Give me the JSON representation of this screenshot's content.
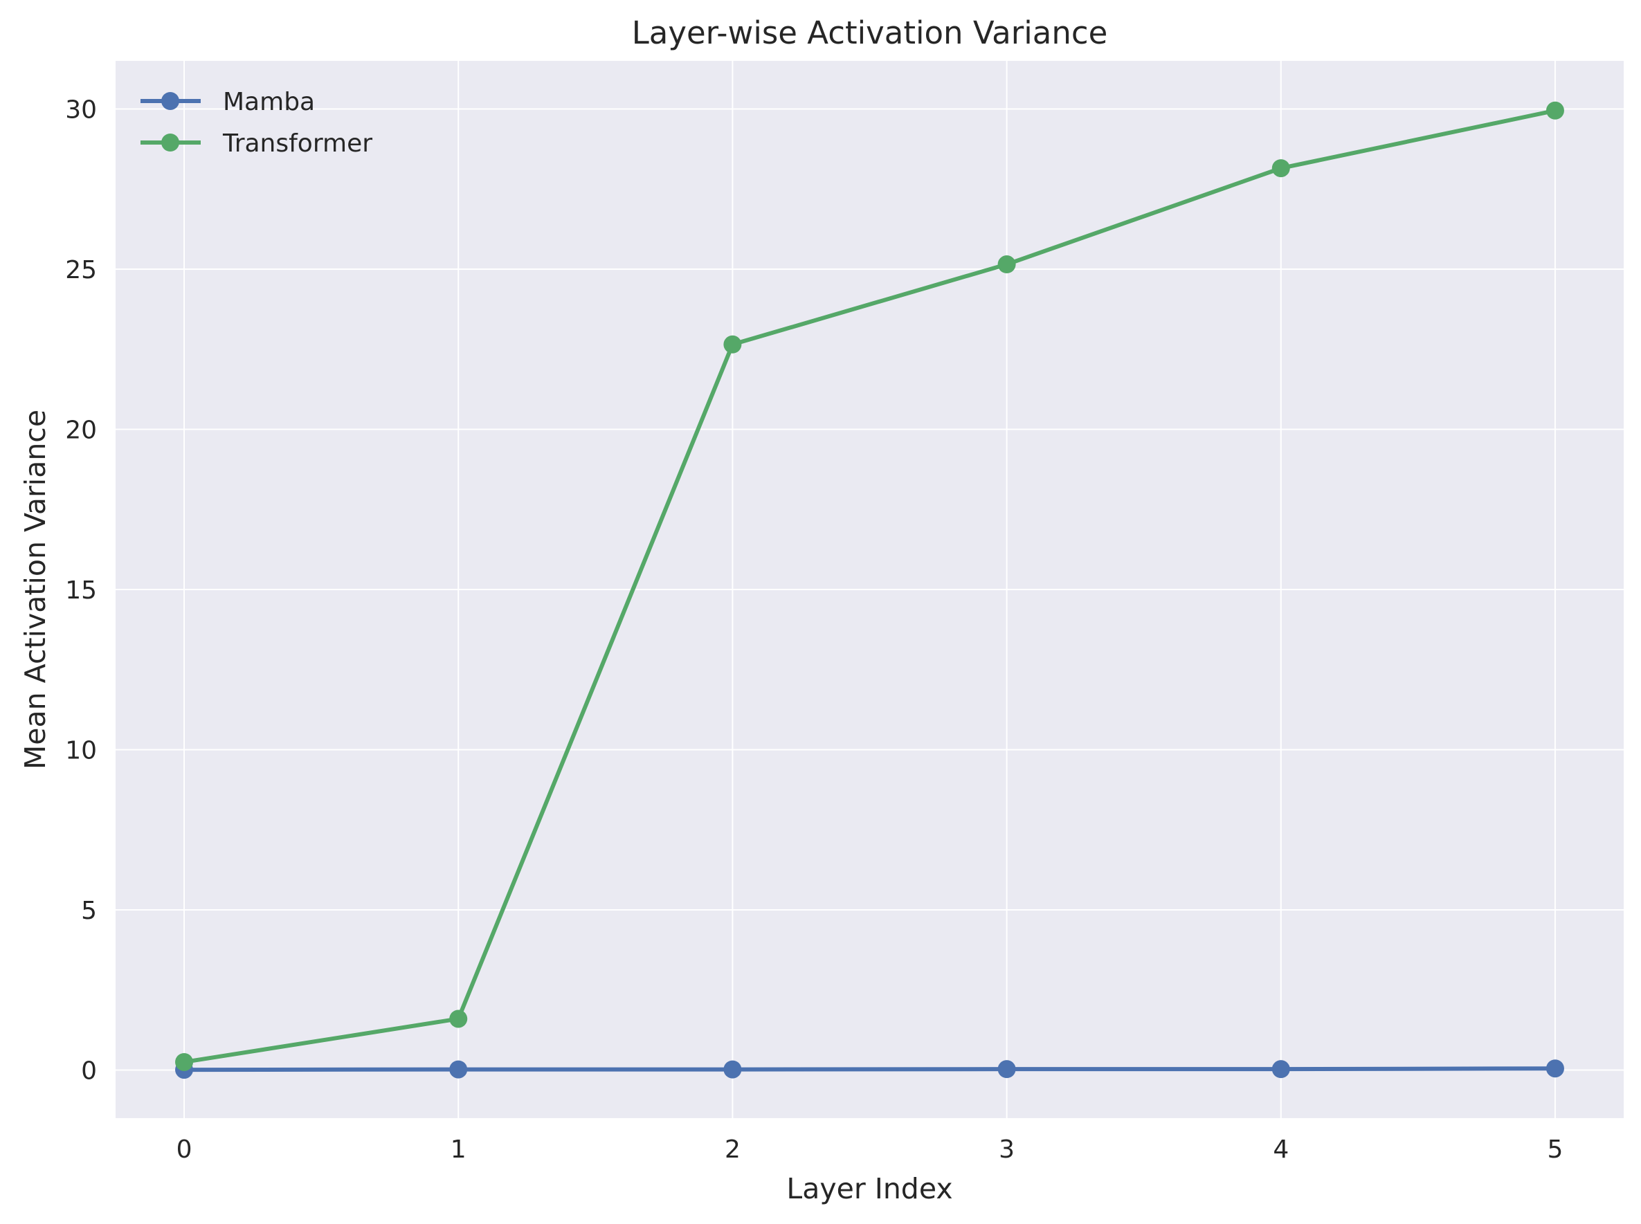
{
  "chart_data": {
    "type": "line",
    "title": "Layer-wise Activation Variance",
    "xlabel": "Layer Index",
    "ylabel": "Mean Activation Variance",
    "x": [
      0,
      1,
      2,
      3,
      4,
      5
    ],
    "x_ticks": [
      "0",
      "1",
      "2",
      "3",
      "4",
      "5"
    ],
    "y_ticks": [
      "0",
      "5",
      "10",
      "15",
      "20",
      "25",
      "30"
    ],
    "xlim": [
      -0.25,
      5.25
    ],
    "ylim": [
      -1.5,
      31.5
    ],
    "grid": true,
    "legend_position": "top-left",
    "series": [
      {
        "name": "Mamba",
        "color": "#4c72b0",
        "values": [
          0.01,
          0.02,
          0.02,
          0.03,
          0.03,
          0.05
        ]
      },
      {
        "name": "Transformer",
        "color": "#55a868",
        "values": [
          0.25,
          1.6,
          22.65,
          25.15,
          28.15,
          29.95
        ]
      }
    ],
    "plot_background": "#eaeaf2",
    "grid_color": "#ffffff"
  }
}
